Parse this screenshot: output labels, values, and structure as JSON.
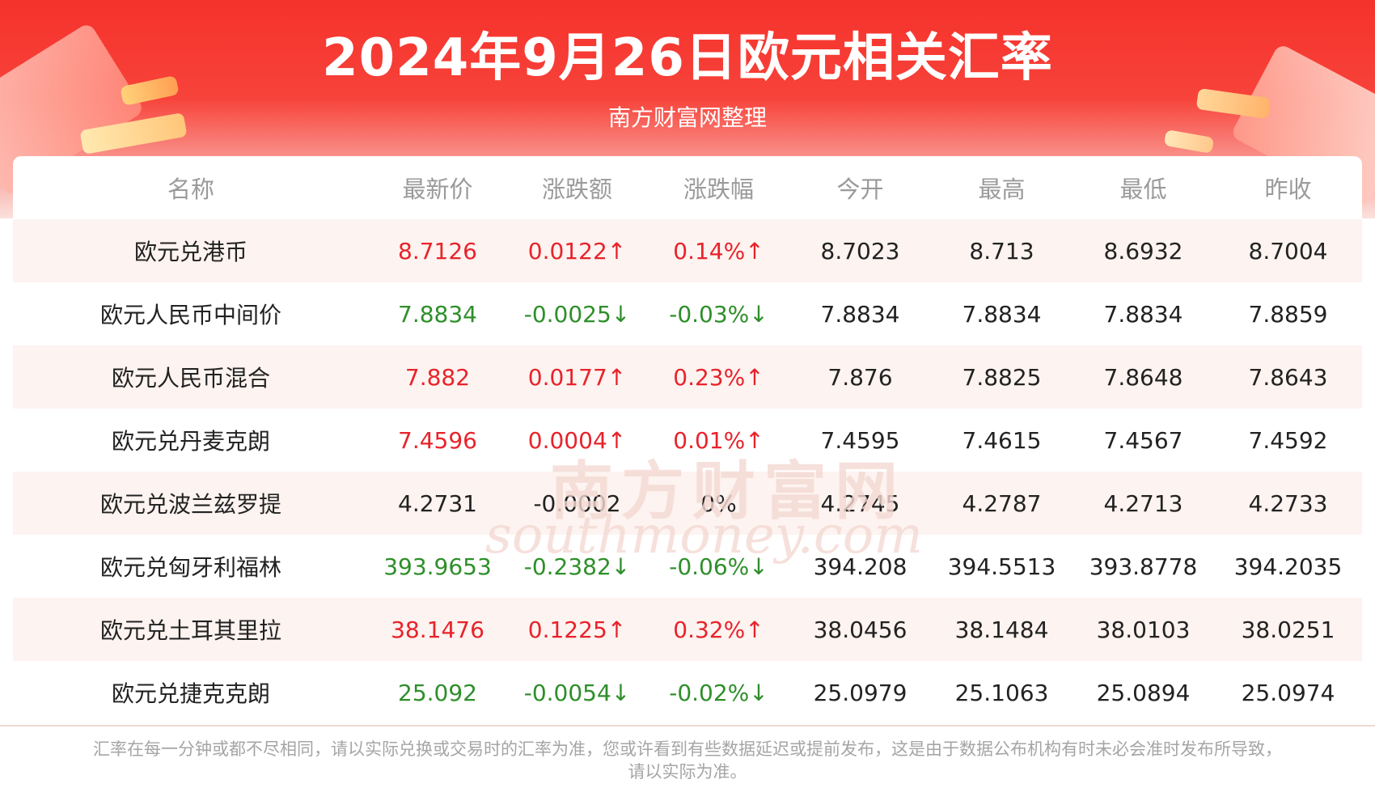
{
  "header": {
    "title": "2024年9月26日欧元相关汇率",
    "subtitle": "南方财富网整理"
  },
  "table": {
    "columns": [
      "名称",
      "最新价",
      "涨跌额",
      "涨跌幅",
      "今开",
      "最高",
      "最低",
      "昨收"
    ],
    "rows": [
      {
        "name": "欧元兑港币",
        "latest": "8.7126",
        "change": "0.0122↑",
        "pct": "0.14%↑",
        "open": "8.7023",
        "high": "8.713",
        "low": "8.6932",
        "prev": "8.7004",
        "trend": "up"
      },
      {
        "name": "欧元人民币中间价",
        "latest": "7.8834",
        "change": "-0.0025↓",
        "pct": "-0.03%↓",
        "open": "7.8834",
        "high": "7.8834",
        "low": "7.8834",
        "prev": "7.8859",
        "trend": "down"
      },
      {
        "name": "欧元人民币混合",
        "latest": "7.882",
        "change": "0.0177↑",
        "pct": "0.23%↑",
        "open": "7.876",
        "high": "7.8825",
        "low": "7.8648",
        "prev": "7.8643",
        "trend": "up"
      },
      {
        "name": "欧元兑丹麦克朗",
        "latest": "7.4596",
        "change": "0.0004↑",
        "pct": "0.01%↑",
        "open": "7.4595",
        "high": "7.4615",
        "low": "7.4567",
        "prev": "7.4592",
        "trend": "up"
      },
      {
        "name": "欧元兑波兰兹罗提",
        "latest": "4.2731",
        "change": "-0.0002",
        "pct": "0%",
        "open": "4.2745",
        "high": "4.2787",
        "low": "4.2713",
        "prev": "4.2733",
        "trend": "flat"
      },
      {
        "name": "欧元兑匈牙利福林",
        "latest": "393.9653",
        "change": "-0.2382↓",
        "pct": "-0.06%↓",
        "open": "394.208",
        "high": "394.5513",
        "low": "393.8778",
        "prev": "394.2035",
        "trend": "down"
      },
      {
        "name": "欧元兑土耳其里拉",
        "latest": "38.1476",
        "change": "0.1225↑",
        "pct": "0.32%↑",
        "open": "38.0456",
        "high": "38.1484",
        "low": "38.0103",
        "prev": "38.0251",
        "trend": "up"
      },
      {
        "name": "欧元兑捷克克朗",
        "latest": "25.092",
        "change": "-0.0054↓",
        "pct": "-0.02%↓",
        "open": "25.0979",
        "high": "25.1063",
        "low": "25.0894",
        "prev": "25.0974",
        "trend": "down"
      }
    ]
  },
  "watermark": {
    "cn": "南方财富网",
    "en": "southmoney.com"
  },
  "footer": {
    "line1": "汇率在每一分钟或都不尽相同，请以实际兑换或交易时的汇率为准，您或许看到有些数据延迟或提前发布，这是由于数据公布机构有时未必会准时发布所导致，",
    "line2": "请以实际为准。"
  },
  "colors": {
    "up": "#e8232b",
    "down": "#2e8f2a",
    "header_red": "#f5322c"
  }
}
